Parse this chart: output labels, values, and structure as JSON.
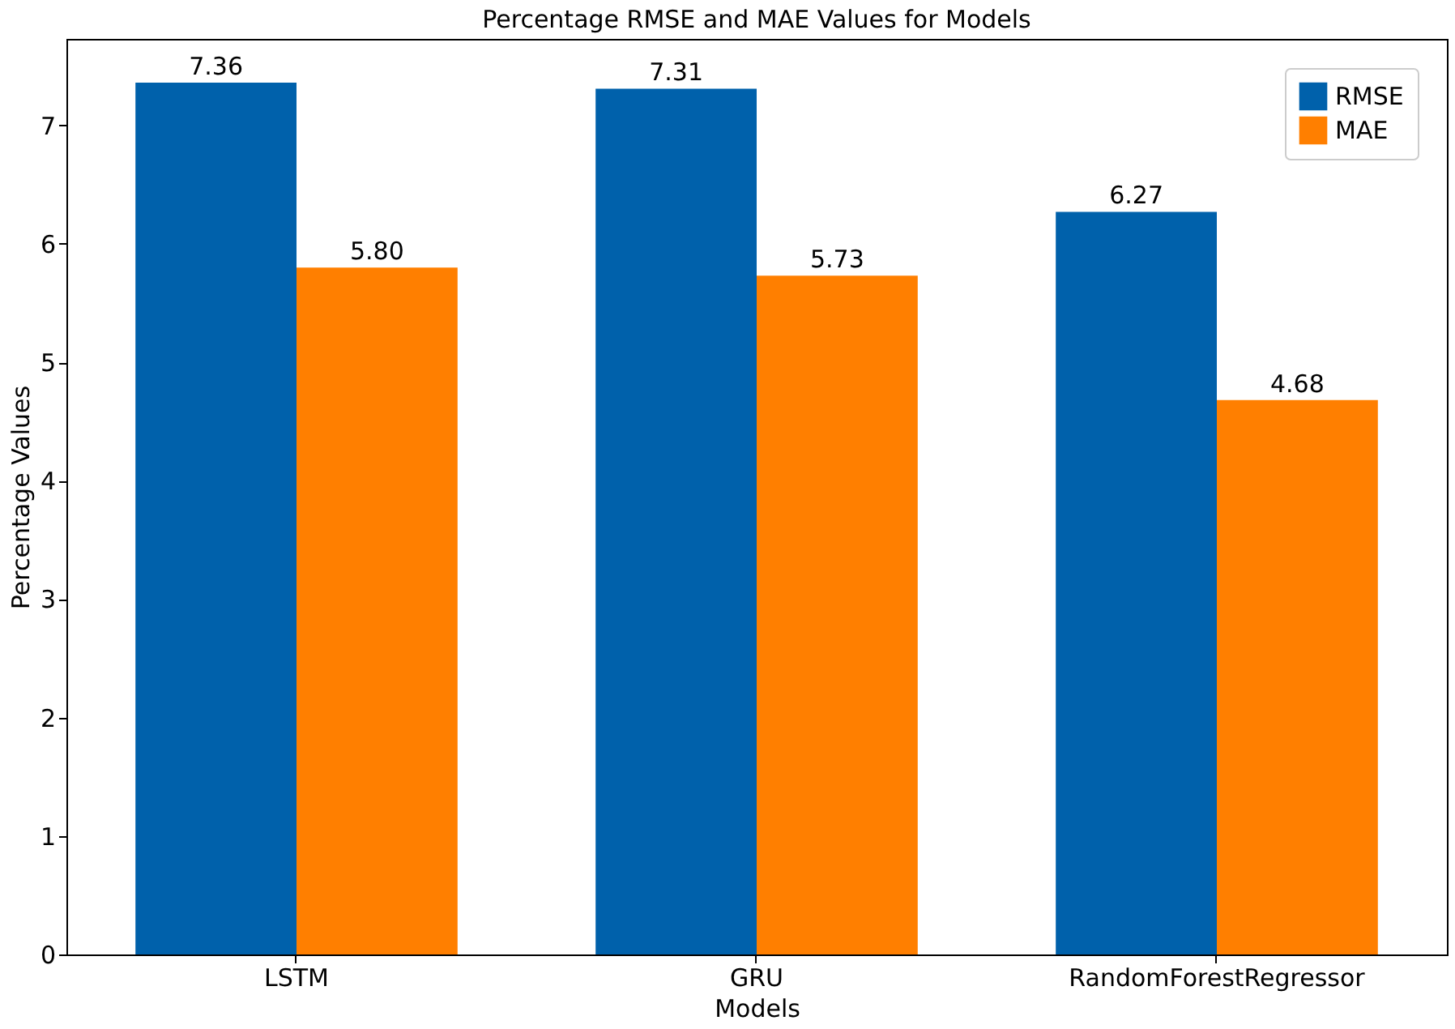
{
  "chart_data": {
    "type": "bar",
    "title": "Percentage RMSE and MAE Values for Models",
    "xlabel": "Models",
    "ylabel": "Percentage Values",
    "categories": [
      "LSTM",
      "GRU",
      "RandomForestRegressor"
    ],
    "series": [
      {
        "name": "RMSE",
        "color": "#0061ab",
        "values": [
          7.36,
          7.31,
          6.27
        ],
        "value_labels": [
          "7.36",
          "7.31",
          "6.27"
        ]
      },
      {
        "name": "MAE",
        "color": "#ff7f00",
        "values": [
          5.8,
          5.73,
          4.68
        ],
        "value_labels": [
          "5.80",
          "5.73",
          "4.68"
        ]
      }
    ],
    "ylim": [
      0,
      7.73
    ],
    "yticks": [
      0,
      1,
      2,
      3,
      4,
      5,
      6,
      7
    ],
    "legend": "top right"
  }
}
